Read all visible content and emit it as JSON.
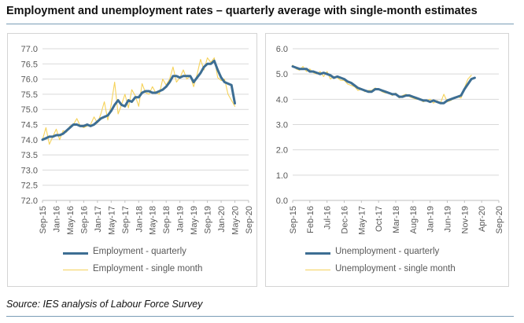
{
  "title": "Employment and unemployment rates – quarterly average with single-month estimates",
  "source": "Source: IES analysis of Labour Force Survey",
  "colors": {
    "quarterly": "#3d6e93",
    "single_month": "#f5d25a",
    "grid": "#d9d9d9"
  },
  "chart_data": [
    {
      "type": "line",
      "x_tick_labels": [
        "Sep-15",
        "Jan-16",
        "May-16",
        "Sep-16",
        "Jan-17",
        "May-17",
        "Sep-17",
        "Jan-18",
        "May-18",
        "Sep-18",
        "Jan-19",
        "May-19",
        "Sep-19",
        "Jan-20",
        "May-20",
        "Sep-20"
      ],
      "x_tick_index": [
        0,
        4,
        8,
        12,
        16,
        20,
        24,
        28,
        32,
        36,
        40,
        44,
        48,
        52,
        56,
        60
      ],
      "y_ticks": [
        "72.0",
        "72.5",
        "73.0",
        "73.5",
        "74.0",
        "74.5",
        "75.0",
        "75.5",
        "76.0",
        "76.5",
        "77.0"
      ],
      "ylim": [
        72.0,
        77.0
      ],
      "series": [
        {
          "name": "Employment - quarterly",
          "values": [
            74.0,
            74.05,
            74.1,
            74.1,
            74.15,
            74.15,
            74.2,
            74.3,
            74.4,
            74.5,
            74.5,
            74.45,
            74.45,
            74.5,
            74.45,
            74.5,
            74.6,
            74.7,
            74.75,
            74.8,
            74.95,
            75.15,
            75.3,
            75.15,
            75.1,
            75.3,
            75.25,
            75.4,
            75.4,
            75.55,
            75.6,
            75.6,
            75.55,
            75.55,
            75.6,
            75.65,
            75.75,
            75.9,
            76.1,
            76.1,
            76.05,
            76.1,
            76.1,
            76.1,
            75.9,
            76.05,
            76.2,
            76.4,
            76.5,
            76.5,
            76.6,
            76.3,
            76.05,
            75.9,
            75.85,
            75.8,
            75.2
          ]
        },
        {
          "name": "Employment - single month",
          "values": [
            74.0,
            74.4,
            73.85,
            74.1,
            74.35,
            74.0,
            74.3,
            74.25,
            74.45,
            74.5,
            74.7,
            74.45,
            74.4,
            74.45,
            74.5,
            74.75,
            74.55,
            74.85,
            75.25,
            74.65,
            75.15,
            75.9,
            74.85,
            75.15,
            75.5,
            75.05,
            75.65,
            75.45,
            75.1,
            75.85,
            75.55,
            75.5,
            75.75,
            75.55,
            75.5,
            76.0,
            75.8,
            76.0,
            76.4,
            75.9,
            76.05,
            76.3,
            76.0,
            76.1,
            75.75,
            76.15,
            76.65,
            76.3,
            76.7,
            76.55,
            76.7,
            76.05,
            75.95,
            76.0,
            75.5,
            75.3,
            75.1
          ]
        }
      ]
    },
    {
      "type": "line",
      "x_tick_labels": [
        "Sep-15",
        "Feb-16",
        "Jul-16",
        "Dec-16",
        "May-17",
        "Oct-17",
        "Mar-18",
        "Aug-18",
        "Jan-19",
        "Jun-19",
        "Nov-19",
        "Apr-20",
        "Sep-20"
      ],
      "x_tick_index": [
        0,
        5,
        10,
        15,
        20,
        25,
        30,
        35,
        40,
        45,
        50,
        55,
        60
      ],
      "y_ticks": [
        "0.0",
        "1.0",
        "2.0",
        "3.0",
        "4.0",
        "5.0",
        "6.0"
      ],
      "ylim": [
        0.0,
        6.0
      ],
      "series": [
        {
          "name": "Unemployment - quarterly",
          "values": [
            5.3,
            5.25,
            5.2,
            5.2,
            5.2,
            5.1,
            5.1,
            5.05,
            5.0,
            5.05,
            5.0,
            4.95,
            4.85,
            4.9,
            4.85,
            4.8,
            4.7,
            4.65,
            4.55,
            4.45,
            4.4,
            4.35,
            4.3,
            4.3,
            4.4,
            4.4,
            4.35,
            4.3,
            4.25,
            4.2,
            4.2,
            4.1,
            4.1,
            4.15,
            4.15,
            4.1,
            4.05,
            4.0,
            3.95,
            3.95,
            3.9,
            3.95,
            3.9,
            3.85,
            3.85,
            3.95,
            4.0,
            4.05,
            4.1,
            4.15,
            4.4,
            4.6,
            4.8,
            4.85
          ]
        },
        {
          "name": "Unemployment - single month",
          "values": [
            5.35,
            5.2,
            5.15,
            5.3,
            5.1,
            5.2,
            5.05,
            5.0,
            5.1,
            4.9,
            5.1,
            4.8,
            4.9,
            4.85,
            4.75,
            4.75,
            4.6,
            4.55,
            4.5,
            4.35,
            4.4,
            4.3,
            4.35,
            4.35,
            4.45,
            4.4,
            4.3,
            4.25,
            4.25,
            4.15,
            4.25,
            4.05,
            4.15,
            4.2,
            4.1,
            4.05,
            4.0,
            4.0,
            3.9,
            3.95,
            4.0,
            3.85,
            3.95,
            3.85,
            4.2,
            3.9,
            3.95,
            4.05,
            4.1,
            4.05,
            4.45,
            4.8,
            4.95
          ]
        }
      ]
    }
  ]
}
